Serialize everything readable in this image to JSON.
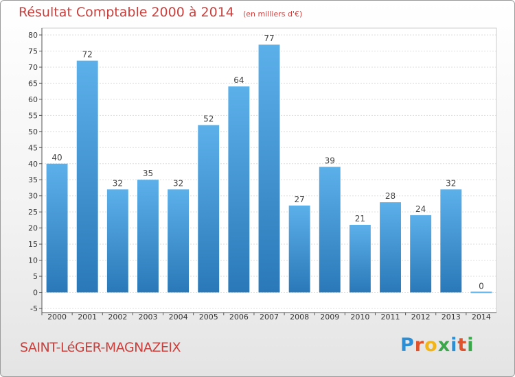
{
  "chart_data": {
    "type": "bar",
    "title": "Résultat Comptable 2000 à 2014",
    "subtitle": "(en milliers d'€)",
    "categories": [
      "2000",
      "2001",
      "2002",
      "2003",
      "2004",
      "2005",
      "2006",
      "2007",
      "2008",
      "2009",
      "2010",
      "2011",
      "2012",
      "2013",
      "2014"
    ],
    "values": [
      40,
      72,
      32,
      35,
      32,
      52,
      64,
      77,
      27,
      39,
      21,
      28,
      24,
      32,
      0
    ],
    "ylim": [
      -5,
      80
    ],
    "yticks": [
      -5,
      0,
      5,
      10,
      15,
      20,
      25,
      30,
      35,
      40,
      45,
      50,
      55,
      60,
      65,
      70,
      75,
      80
    ],
    "grid": true,
    "xlabel": "",
    "ylabel": "",
    "bar_color_light": "#5cb0ea",
    "bar_color_dark": "#2a78b8"
  },
  "footer": {
    "commune": "SAINT-LéGER-MAGNAZEIX",
    "logo_letters": [
      "P",
      "r",
      "o",
      "x",
      "i",
      "t",
      "i"
    ],
    "logo_colors": [
      "#2c8fd6",
      "#e0522b",
      "#f2b519",
      "#3aa84a",
      "#2c8fd6",
      "#e0522b",
      "#3aa84a"
    ]
  }
}
